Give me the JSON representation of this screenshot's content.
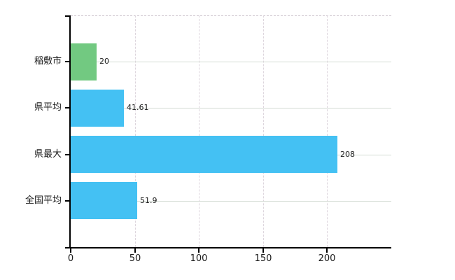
{
  "chart_data": {
    "type": "bar",
    "orientation": "horizontal",
    "title": "",
    "categories": [
      "稲敷市",
      "県平均",
      "県最大",
      "全国平均"
    ],
    "values": [
      20,
      41.61,
      208,
      51.9
    ],
    "value_labels": [
      "20",
      "41.61",
      "208",
      "51.9"
    ],
    "bar_colors": [
      "#72c981",
      "#44c1f3",
      "#44c1f3",
      "#44c1f3"
    ],
    "xlim": [
      0,
      250
    ],
    "x_ticks": [
      0,
      50,
      100,
      150,
      200
    ],
    "x_tick_labels": [
      "0",
      "50",
      "100",
      "150",
      "200"
    ],
    "grid": {
      "vertical_style": "dashed",
      "vertical_color": "#ddd5dd",
      "horizontal_style": "solid",
      "horizontal_color": "#d4dcd4",
      "top_border_style": "dashed",
      "top_border_color": "#cfc7cf"
    },
    "axis_color": "#000000",
    "text_color": "#1a1a1a",
    "background_color": "#ffffff",
    "legend": "none",
    "xlabel": "",
    "ylabel": ""
  }
}
